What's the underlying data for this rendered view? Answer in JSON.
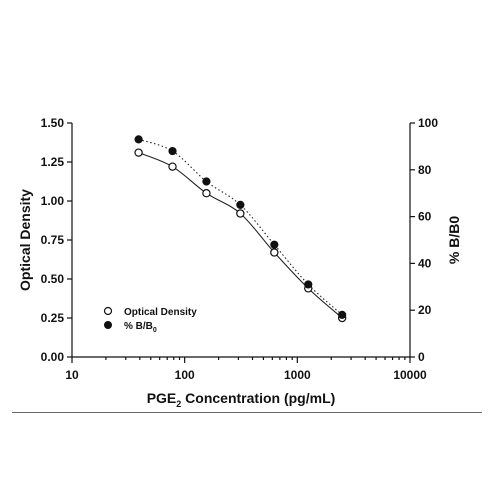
{
  "chart_data": {
    "type": "scatter",
    "x_scale": "log",
    "xlim": [
      10,
      10000
    ],
    "x_ticks": [
      10,
      100,
      1000,
      10000
    ],
    "ylim_left": [
      0,
      1.5
    ],
    "y_left_ticks": [
      "0.00",
      "0.25",
      "0.50",
      "0.75",
      "1.00",
      "1.25",
      "1.50"
    ],
    "ylim_right": [
      0,
      100
    ],
    "y_right_ticks": [
      "0",
      "20",
      "40",
      "60",
      "80",
      "100"
    ],
    "xlabel": {
      "prefix": "PGE",
      "sub": "2",
      "suffix": " Concentration (pg/mL)"
    },
    "ylabel_left": "Optical Density",
    "ylabel_right": "% B/B0",
    "legend_position": "lower-left",
    "grid": false,
    "x": [
      39,
      78,
      156,
      312,
      625,
      1250,
      2500
    ],
    "series": [
      {
        "name": "Optical Density",
        "axis": "left",
        "marker": "open-circle",
        "line": "solid",
        "values": [
          1.31,
          1.22,
          1.05,
          0.92,
          0.67,
          0.44,
          0.25
        ]
      },
      {
        "name": "% B/B0",
        "axis": "right",
        "marker": "filled-circle",
        "line": "dotted",
        "values": [
          93,
          88,
          75,
          65,
          48,
          31,
          18
        ]
      }
    ],
    "legend": [
      {
        "prefix": "Optical Density",
        "sub": ""
      },
      {
        "prefix": "% B/B",
        "sub": "0"
      }
    ]
  }
}
